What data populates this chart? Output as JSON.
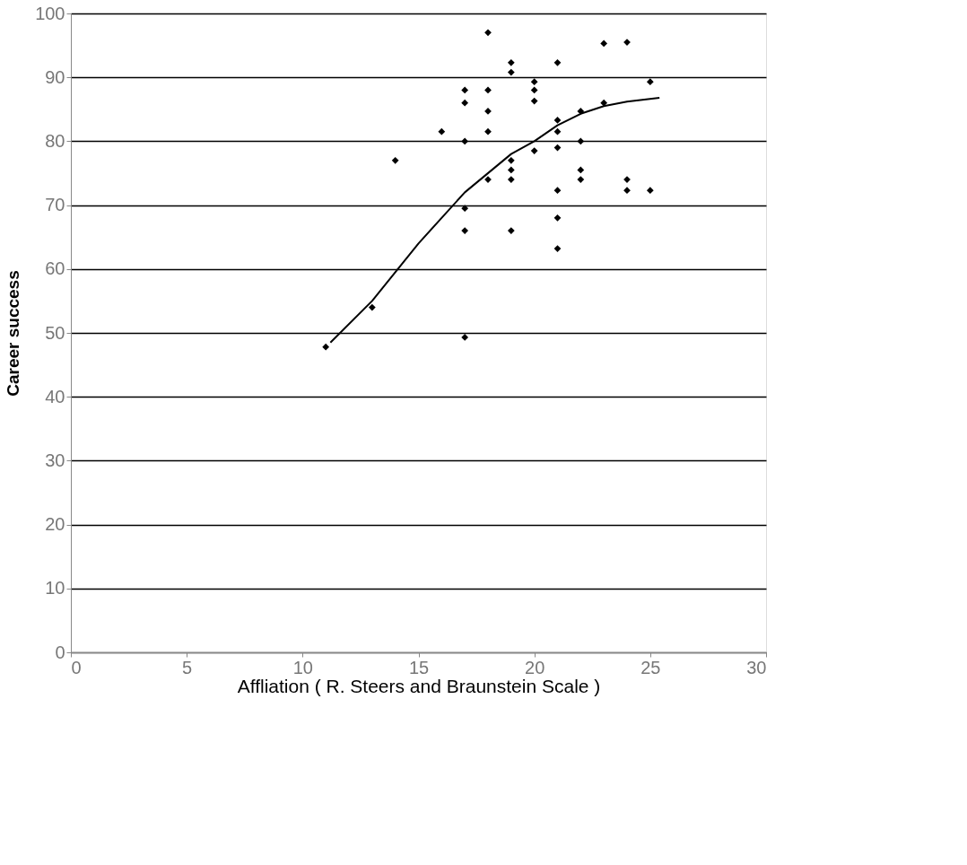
{
  "chart_data": {
    "type": "scatter",
    "xlabel": "Affliation  ( R. Steers and Braunstein Scale )",
    "ylabel": "Career success",
    "xlim": [
      0,
      30
    ],
    "xticks": [
      0,
      5,
      10,
      15,
      20,
      25,
      30
    ],
    "ylim": [
      0,
      100
    ],
    "yticks": [
      0,
      10,
      20,
      30,
      40,
      50,
      60,
      70,
      80,
      90,
      100
    ],
    "grid": "y",
    "marker": "diamond",
    "series": [
      {
        "color": "#000000",
        "x": [
          11,
          13,
          14,
          16,
          17,
          17,
          17,
          17,
          17,
          17,
          18,
          18,
          18,
          18,
          18,
          19,
          19,
          19,
          19,
          19,
          19,
          20,
          20,
          20,
          20,
          21,
          21,
          21,
          21,
          21,
          21,
          21,
          22,
          22,
          22,
          22,
          23,
          23,
          24,
          24,
          24,
          25,
          25
        ],
        "values": [
          47.8,
          54,
          77,
          81.5,
          88,
          86,
          80,
          69.5,
          66,
          49.3,
          97,
          88,
          84.7,
          81.5,
          74,
          92.3,
          90.8,
          77,
          75.5,
          74,
          66,
          89.3,
          88,
          86.3,
          78.5,
          92.3,
          83.3,
          81.5,
          79,
          72.3,
          68,
          63.2,
          84.7,
          80,
          75.5,
          74,
          95.3,
          86,
          95.5,
          74,
          72.3,
          89.3,
          72.3
        ]
      },
      {
        "type": "line",
        "marker": "none",
        "line_style": "solid",
        "color": "#000000",
        "x": [
          11.2,
          13,
          15,
          17,
          19,
          20,
          21,
          22,
          23,
          24,
          25.4
        ],
        "values": [
          48.5,
          55,
          64,
          72,
          78,
          80,
          82.5,
          84.3,
          85.5,
          86.2,
          86.8
        ]
      }
    ]
  }
}
